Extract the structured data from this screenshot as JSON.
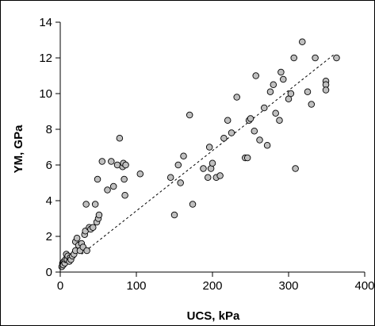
{
  "chart_data": {
    "type": "scatter",
    "xlabel": "UCS, kPa",
    "ylabel": "YM, GPa",
    "xlim": [
      0,
      400
    ],
    "ylim": [
      0,
      14
    ],
    "xticks": [
      0,
      100,
      200,
      300,
      400
    ],
    "yticks": [
      0,
      2,
      4,
      6,
      8,
      10,
      12,
      14
    ],
    "grid": false,
    "legend": "none",
    "series": [
      {
        "marker": "circle",
        "color": "#bfbfbf",
        "points": [
          [
            2,
            0.3
          ],
          [
            3,
            0.5
          ],
          [
            4,
            0.4
          ],
          [
            5,
            0.6
          ],
          [
            6,
            0.5
          ],
          [
            7,
            0.7
          ],
          [
            8,
            1.0
          ],
          [
            9,
            0.7
          ],
          [
            10,
            0.9
          ],
          [
            12,
            0.6
          ],
          [
            13,
            0.8
          ],
          [
            14,
            0.7
          ],
          [
            16,
            0.9
          ],
          [
            18,
            1.0
          ],
          [
            20,
            1.2
          ],
          [
            20,
            1.7
          ],
          [
            22,
            1.9
          ],
          [
            24,
            1.5
          ],
          [
            26,
            1.2
          ],
          [
            28,
            1.6
          ],
          [
            30,
            1.4
          ],
          [
            32,
            2.1
          ],
          [
            33,
            2.3
          ],
          [
            34,
            3.8
          ],
          [
            35,
            1.2
          ],
          [
            38,
            2.5
          ],
          [
            40,
            2.4
          ],
          [
            43,
            2.5
          ],
          [
            46,
            3.8
          ],
          [
            48,
            2.8
          ],
          [
            49,
            5.2
          ],
          [
            50,
            3.0
          ],
          [
            51,
            3.2
          ],
          [
            55,
            6.2
          ],
          [
            62,
            4.6
          ],
          [
            67,
            6.2
          ],
          [
            70,
            4.8
          ],
          [
            75,
            6.0
          ],
          [
            78,
            7.5
          ],
          [
            82,
            5.9
          ],
          [
            83,
            6.1
          ],
          [
            84,
            5.2
          ],
          [
            85,
            4.3
          ],
          [
            86,
            6.0
          ],
          [
            105,
            5.5
          ],
          [
            145,
            5.3
          ],
          [
            150,
            3.2
          ],
          [
            155,
            6.0
          ],
          [
            158,
            5.0
          ],
          [
            162,
            6.5
          ],
          [
            170,
            8.8
          ],
          [
            174,
            3.8
          ],
          [
            188,
            5.8
          ],
          [
            194,
            5.3
          ],
          [
            196,
            7.0
          ],
          [
            198,
            5.8
          ],
          [
            200,
            6.1
          ],
          [
            205,
            5.3
          ],
          [
            210,
            5.4
          ],
          [
            215,
            7.5
          ],
          [
            220,
            8.5
          ],
          [
            225,
            7.8
          ],
          [
            232,
            9.8
          ],
          [
            243,
            6.4
          ],
          [
            246,
            6.4
          ],
          [
            248,
            8.5
          ],
          [
            250,
            8.6
          ],
          [
            255,
            7.9
          ],
          [
            257,
            11.0
          ],
          [
            262,
            7.4
          ],
          [
            268,
            9.2
          ],
          [
            272,
            7.1
          ],
          [
            276,
            10.1
          ],
          [
            280,
            10.5
          ],
          [
            283,
            8.9
          ],
          [
            288,
            8.5
          ],
          [
            290,
            11.2
          ],
          [
            293,
            10.8
          ],
          [
            300,
            9.7
          ],
          [
            303,
            10.0
          ],
          [
            307,
            12.0
          ],
          [
            309,
            5.8
          ],
          [
            318,
            12.9
          ],
          [
            325,
            10.1
          ],
          [
            330,
            9.4
          ],
          [
            335,
            12.0
          ],
          [
            349,
            10.7
          ],
          [
            349,
            10.5
          ],
          [
            349,
            10.2
          ],
          [
            363,
            12.0
          ]
        ]
      }
    ],
    "trendline": {
      "style": "dashed",
      "x": [
        28,
        360
      ],
      "y": [
        1.0,
        12.2
      ]
    }
  }
}
